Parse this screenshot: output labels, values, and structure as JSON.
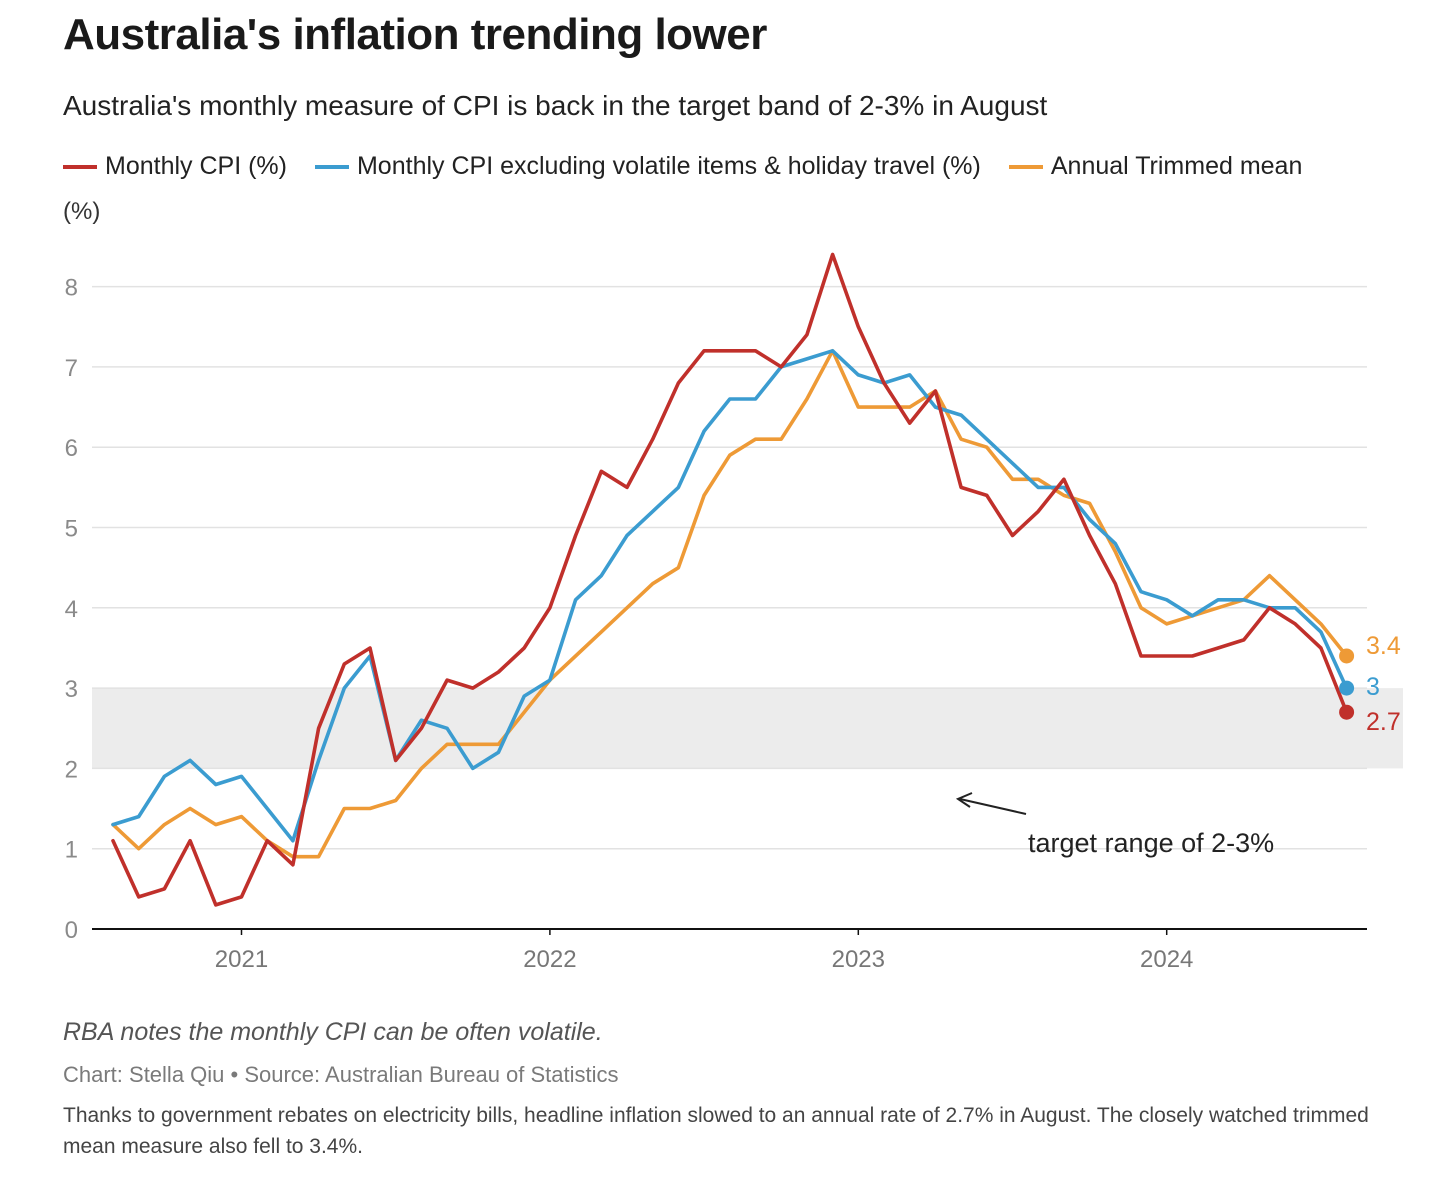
{
  "header": {
    "title": "Australia's inflation trending lower",
    "subtitle": "Australia's monthly measure of CPI is back in the target band of 2-3% in August",
    "unit": "(%)"
  },
  "annotation": {
    "text": "target range of 2-3%"
  },
  "footer": {
    "note": "RBA notes the monthly CPI can be often volatile.",
    "credit": "Chart: Stella Qiu • Source: Australian Bureau of Statistics",
    "caption": "Thanks to government rebates on electricity bills, headline inflation slowed to an annual rate of 2.7% in August. The closely watched trimmed mean measure also fell to 3.4%."
  },
  "chart_data": {
    "type": "line",
    "x_start": "2020-08",
    "x_frequency": "monthly",
    "x_ticks": [
      "2021",
      "2022",
      "2023",
      "2024"
    ],
    "y_ticks": [
      0,
      1,
      2,
      3,
      4,
      5,
      6,
      7,
      8
    ],
    "ylim": [
      0,
      8.5
    ],
    "target_band": [
      2,
      3
    ],
    "target_band_color": "#ececec",
    "grid": true,
    "legend_position": "top",
    "series": [
      {
        "name": "Monthly CPI (%)",
        "color": "#c0302b",
        "end_label": "2.7",
        "values": [
          1.1,
          0.4,
          0.5,
          1.1,
          0.3,
          0.4,
          1.1,
          0.8,
          2.5,
          3.3,
          3.5,
          2.1,
          2.5,
          3.1,
          3.0,
          3.2,
          3.5,
          4.0,
          4.9,
          5.7,
          5.5,
          6.1,
          6.8,
          7.2,
          7.2,
          7.2,
          7.0,
          7.4,
          8.4,
          7.5,
          6.8,
          6.3,
          6.7,
          5.5,
          5.4,
          4.9,
          5.2,
          5.6,
          4.9,
          4.3,
          3.4,
          3.4,
          3.4,
          3.5,
          3.6,
          4.0,
          3.8,
          3.5,
          2.7
        ]
      },
      {
        "name": "Monthly CPI excluding volatile items & holiday travel (%)",
        "color": "#3b9cd0",
        "end_label": "3",
        "values": [
          1.3,
          1.4,
          1.9,
          2.1,
          1.8,
          1.9,
          1.5,
          1.1,
          2.1,
          3.0,
          3.4,
          2.1,
          2.6,
          2.5,
          2.0,
          2.2,
          2.9,
          3.1,
          4.1,
          4.4,
          4.9,
          5.2,
          5.5,
          6.2,
          6.6,
          6.6,
          7.0,
          7.1,
          7.2,
          6.9,
          6.8,
          6.9,
          6.5,
          6.4,
          6.1,
          5.8,
          5.5,
          5.5,
          5.1,
          4.8,
          4.2,
          4.1,
          3.9,
          4.1,
          4.1,
          4.0,
          4.0,
          3.7,
          3.0
        ]
      },
      {
        "name": "Annual Trimmed mean",
        "color": "#ee9a36",
        "end_label": "3.4",
        "values": [
          1.3,
          1.0,
          1.3,
          1.5,
          1.3,
          1.4,
          1.1,
          0.9,
          0.9,
          1.5,
          1.5,
          1.6,
          2.0,
          2.3,
          2.3,
          2.3,
          2.7,
          3.1,
          3.4,
          3.7,
          4.0,
          4.3,
          4.5,
          5.4,
          5.9,
          6.1,
          6.1,
          6.6,
          7.2,
          6.5,
          6.5,
          6.5,
          6.7,
          6.1,
          6.0,
          5.6,
          5.6,
          5.4,
          5.3,
          4.7,
          4.0,
          3.8,
          3.9,
          4.0,
          4.1,
          4.4,
          4.1,
          3.8,
          3.4
        ]
      }
    ]
  }
}
